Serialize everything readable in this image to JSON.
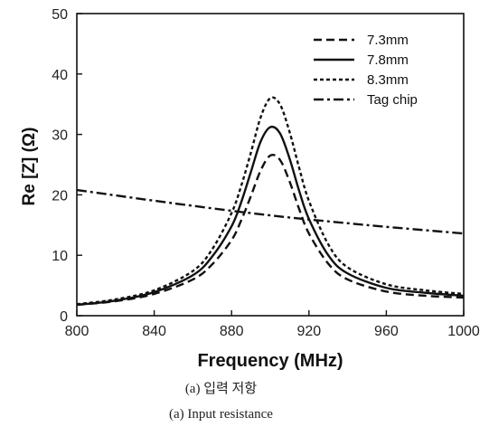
{
  "chart_data": {
    "type": "line",
    "xlabel": "Frequency (MHz)",
    "ylabel": "Re [Z] (Ω)",
    "xlim": [
      800,
      1000
    ],
    "ylim": [
      0,
      50
    ],
    "xticks": [
      800,
      840,
      880,
      920,
      960,
      1000
    ],
    "yticks": [
      0,
      10,
      20,
      30,
      40,
      50
    ],
    "grid": false,
    "legend_position": "top-right",
    "series": [
      {
        "name": "7.3mm",
        "style": "dashed",
        "x": [
          800,
          820,
          840,
          860,
          870,
          880,
          885,
          890,
          895,
          900,
          905,
          910,
          915,
          920,
          930,
          940,
          960,
          980,
          1000
        ],
        "y": [
          1.8,
          2.4,
          3.6,
          6.0,
          8.5,
          12.5,
          15.8,
          19.8,
          24.0,
          26.5,
          25.8,
          22.2,
          17.6,
          13.6,
          8.6,
          6.0,
          4.0,
          3.3,
          3.0
        ]
      },
      {
        "name": "7.8mm",
        "style": "solid",
        "x": [
          800,
          820,
          840,
          860,
          870,
          880,
          885,
          890,
          895,
          900,
          905,
          910,
          915,
          920,
          930,
          940,
          960,
          980,
          1000
        ],
        "y": [
          1.8,
          2.5,
          3.9,
          6.7,
          9.8,
          14.8,
          18.8,
          23.8,
          28.8,
          31.2,
          30.2,
          26.0,
          20.6,
          16.0,
          10.0,
          7.0,
          4.6,
          3.8,
          3.3
        ]
      },
      {
        "name": "8.3mm",
        "style": "dotted",
        "x": [
          800,
          820,
          840,
          860,
          870,
          880,
          885,
          890,
          895,
          900,
          905,
          910,
          915,
          920,
          930,
          940,
          960,
          980,
          1000
        ],
        "y": [
          1.9,
          2.7,
          4.2,
          7.4,
          11.0,
          17.0,
          21.5,
          27.0,
          32.8,
          36.0,
          35.0,
          30.4,
          24.4,
          19.0,
          11.8,
          8.0,
          5.2,
          4.2,
          3.6
        ]
      },
      {
        "name": "Tag chip",
        "style": "dashdot",
        "x": [
          800,
          850,
          900,
          950,
          1000
        ],
        "y": [
          20.8,
          18.6,
          16.6,
          15.0,
          13.6
        ]
      }
    ]
  },
  "captions": {
    "korean": "(a) 입력 저항",
    "english": "(a) Input resistance"
  }
}
